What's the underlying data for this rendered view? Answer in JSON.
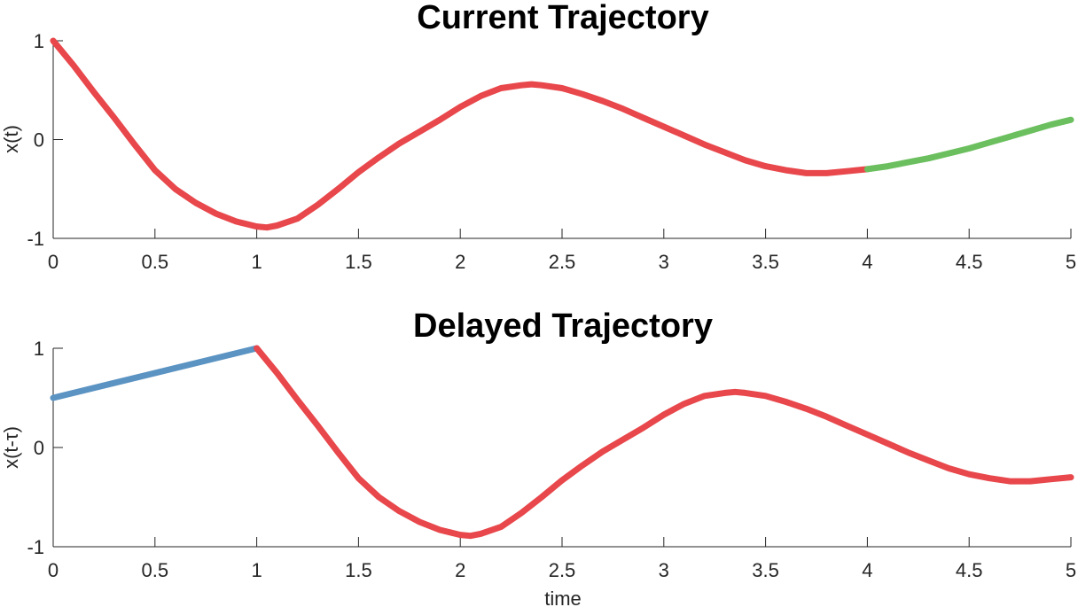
{
  "chart_data": [
    {
      "type": "line",
      "title": "Current Trajectory",
      "xlabel": "",
      "ylabel": "x(t)",
      "xlim": [
        0,
        5
      ],
      "ylim": [
        -1,
        1
      ],
      "xticks": [
        0,
        0.5,
        1,
        1.5,
        2,
        2.5,
        3,
        3.5,
        4,
        4.5,
        5
      ],
      "xtick_labels": [
        "0",
        "0.5",
        "1",
        "1.5",
        "2",
        "2.5",
        "3",
        "3.5",
        "4",
        "4.5",
        "5"
      ],
      "yticks": [
        -1,
        0,
        1
      ],
      "ytick_labels": [
        "-1",
        "0",
        "1"
      ],
      "grid": false,
      "series": [
        {
          "color": "#e8474b",
          "x": [
            0,
            0.1,
            0.2,
            0.3,
            0.4,
            0.5,
            0.6,
            0.7,
            0.8,
            0.9,
            1.0,
            1.05,
            1.1,
            1.2,
            1.3,
            1.4,
            1.5,
            1.6,
            1.7,
            1.8,
            1.9,
            2.0,
            2.1,
            2.2,
            2.3,
            2.35,
            2.4,
            2.5,
            2.6,
            2.7,
            2.8,
            2.9,
            3.0,
            3.1,
            3.2,
            3.3,
            3.4,
            3.5,
            3.6,
            3.7,
            3.75,
            3.8,
            3.9,
            4.0
          ],
          "y": [
            1.0,
            0.75,
            0.48,
            0.22,
            -0.05,
            -0.31,
            -0.5,
            -0.64,
            -0.75,
            -0.83,
            -0.88,
            -0.89,
            -0.87,
            -0.8,
            -0.66,
            -0.5,
            -0.33,
            -0.18,
            -0.04,
            0.08,
            0.2,
            0.33,
            0.44,
            0.52,
            0.55,
            0.56,
            0.55,
            0.52,
            0.46,
            0.39,
            0.31,
            0.22,
            0.13,
            0.04,
            -0.05,
            -0.13,
            -0.21,
            -0.27,
            -0.31,
            -0.34,
            -0.34,
            -0.34,
            -0.32,
            -0.3
          ]
        },
        {
          "color": "#6bbf5e",
          "x": [
            4.0,
            4.1,
            4.2,
            4.3,
            4.4,
            4.5,
            4.6,
            4.7,
            4.8,
            4.9,
            5.0
          ],
          "y": [
            -0.3,
            -0.27,
            -0.23,
            -0.19,
            -0.14,
            -0.09,
            -0.03,
            0.03,
            0.09,
            0.15,
            0.2
          ]
        }
      ]
    },
    {
      "type": "line",
      "title": "Delayed Trajectory",
      "xlabel": "time",
      "ylabel": "x(t-τ)",
      "xlim": [
        0,
        5
      ],
      "ylim": [
        -1,
        1
      ],
      "xticks": [
        0,
        0.5,
        1,
        1.5,
        2,
        2.5,
        3,
        3.5,
        4,
        4.5,
        5
      ],
      "xtick_labels": [
        "0",
        "0.5",
        "1",
        "1.5",
        "2",
        "2.5",
        "3",
        "3.5",
        "4",
        "4.5",
        "5"
      ],
      "yticks": [
        -1,
        0,
        1
      ],
      "ytick_labels": [
        "-1",
        "0",
        "1"
      ],
      "grid": false,
      "series": [
        {
          "color": "#5b93c2",
          "x": [
            0,
            1.0
          ],
          "y": [
            0.5,
            1.0
          ]
        },
        {
          "color": "#e8474b",
          "x": [
            1.0,
            1.1,
            1.2,
            1.3,
            1.4,
            1.5,
            1.6,
            1.7,
            1.8,
            1.9,
            2.0,
            2.05,
            2.1,
            2.2,
            2.3,
            2.4,
            2.5,
            2.6,
            2.7,
            2.8,
            2.9,
            3.0,
            3.1,
            3.2,
            3.3,
            3.35,
            3.4,
            3.5,
            3.6,
            3.7,
            3.8,
            3.9,
            4.0,
            4.1,
            4.2,
            4.3,
            4.4,
            4.5,
            4.6,
            4.7,
            4.75,
            4.8,
            4.9,
            5.0
          ],
          "y": [
            1.0,
            0.75,
            0.48,
            0.22,
            -0.05,
            -0.31,
            -0.5,
            -0.64,
            -0.75,
            -0.83,
            -0.88,
            -0.89,
            -0.87,
            -0.8,
            -0.66,
            -0.5,
            -0.33,
            -0.18,
            -0.04,
            0.08,
            0.2,
            0.33,
            0.44,
            0.52,
            0.55,
            0.56,
            0.55,
            0.52,
            0.46,
            0.39,
            0.31,
            0.22,
            0.13,
            0.04,
            -0.05,
            -0.13,
            -0.21,
            -0.27,
            -0.31,
            -0.34,
            -0.34,
            -0.34,
            -0.32,
            -0.3
          ]
        }
      ]
    }
  ]
}
